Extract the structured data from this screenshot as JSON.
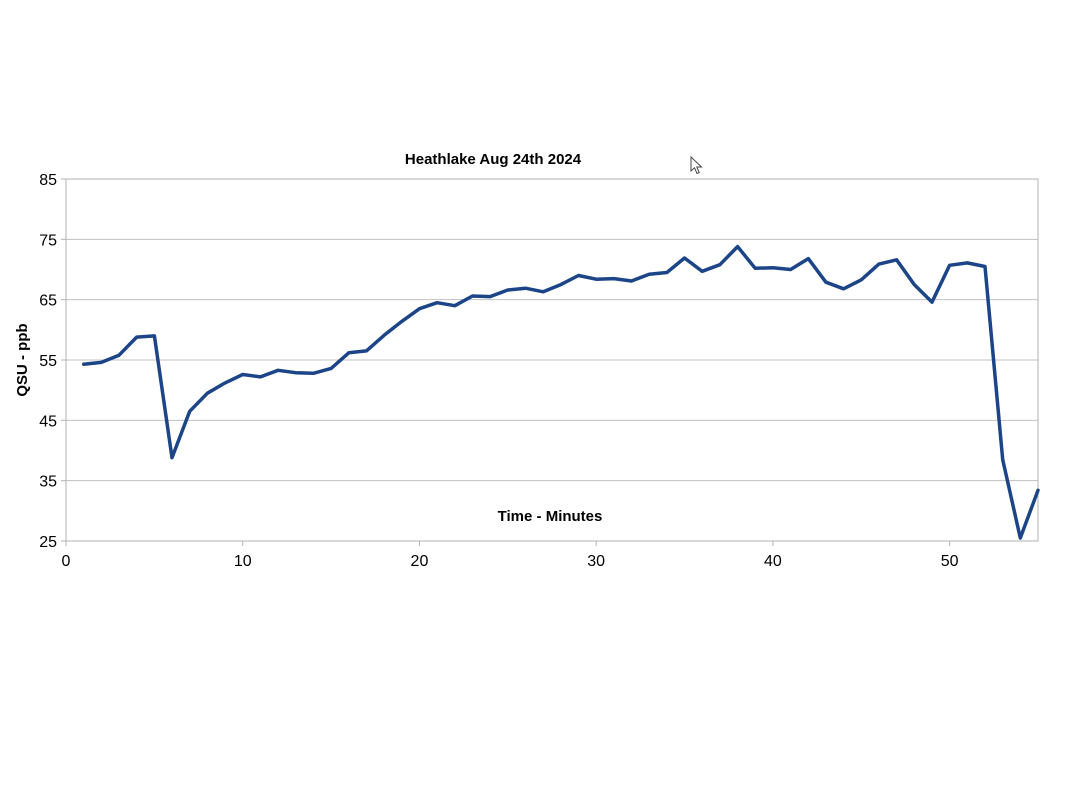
{
  "chart_data": {
    "type": "line",
    "title": "Heathlake Aug 24th 2024",
    "xlabel": "Time - Minutes",
    "ylabel": "QSU - ppb",
    "xlim": [
      0,
      55
    ],
    "ylim": [
      25,
      85
    ],
    "xticks": [
      0,
      10,
      20,
      30,
      40,
      50
    ],
    "yticks": [
      25,
      35,
      45,
      55,
      65,
      75,
      85
    ],
    "grid": true,
    "legend": "none",
    "series_color": "#1c4587",
    "x": [
      1,
      2,
      3,
      4,
      5,
      6,
      7,
      8,
      9,
      10,
      11,
      12,
      13,
      14,
      15,
      16,
      17,
      18,
      19,
      20,
      21,
      22,
      23,
      24,
      25,
      26,
      27,
      28,
      29,
      30,
      31,
      32,
      33,
      34,
      35,
      36,
      37,
      38,
      39,
      40,
      41,
      42,
      43,
      44,
      45,
      46,
      47,
      48,
      49,
      50,
      51,
      52,
      53,
      54,
      55
    ],
    "y": [
      54.3,
      54.6,
      55.8,
      58.8,
      59.0,
      38.8,
      46.5,
      49.5,
      51.2,
      52.6,
      52.2,
      53.3,
      52.9,
      52.8,
      53.6,
      56.2,
      56.5,
      59.1,
      61.4,
      63.5,
      64.5,
      64.0,
      65.6,
      65.5,
      66.6,
      66.9,
      66.3,
      67.5,
      69.0,
      68.4,
      68.5,
      68.1,
      69.2,
      69.5,
      71.9,
      69.7,
      70.8,
      73.8,
      70.2,
      70.3,
      70.0,
      71.8,
      67.9,
      66.8,
      68.3,
      70.9,
      71.6,
      67.5,
      64.6,
      70.7,
      71.1,
      70.5,
      38.5,
      25.5,
      33.4
    ]
  }
}
